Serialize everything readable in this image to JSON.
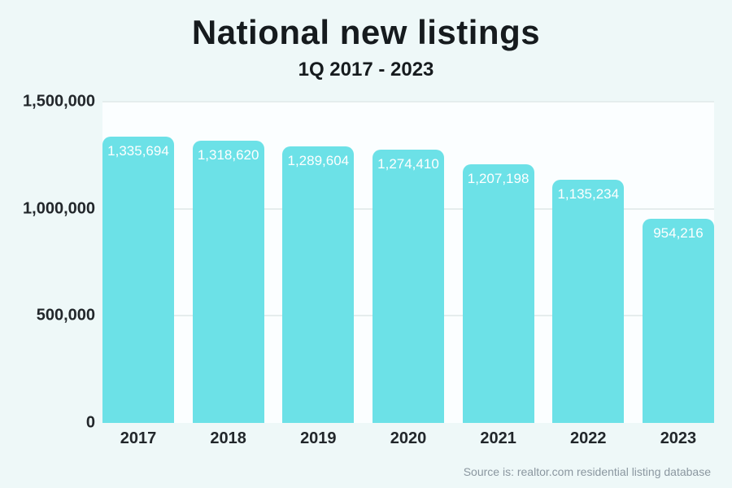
{
  "header": {
    "title": "National new listings",
    "subtitle": "1Q 2017 - 2023"
  },
  "footer": {
    "source": "Source is: realtor.com residential listing database"
  },
  "colors": {
    "background": "#eef8f8",
    "plot_background": "#fbfeff",
    "bar": "#6ce1e7",
    "gridline": "#e5eded",
    "title_text": "#161b1e",
    "axis_text": "#22272b",
    "bar_label_text": "#ffffff",
    "source_text": "#8b97a0"
  },
  "chart_data": {
    "type": "bar",
    "title": "National new listings",
    "subtitle": "1Q 2017 - 2023",
    "categories": [
      "2017",
      "2018",
      "2019",
      "2020",
      "2021",
      "2022",
      "2023"
    ],
    "values": [
      1335694,
      1318620,
      1289604,
      1274410,
      1207198,
      1135234,
      954216
    ],
    "value_labels": [
      "1,335,694",
      "1,318,620",
      "1,289,604",
      "1,274,410",
      "1,207,198",
      "1,135,234",
      "954,216"
    ],
    "xlabel": "",
    "ylabel": "",
    "ylim": [
      0,
      1500000
    ],
    "yticks": [
      0,
      500000,
      1000000,
      1500000
    ],
    "ytick_labels": [
      "0",
      "500,000",
      "1,000,000",
      "1,500,000"
    ],
    "grid": true,
    "legend": false,
    "bar_label_position": "inside-top",
    "source": "Source is: realtor.com residential listing database"
  }
}
